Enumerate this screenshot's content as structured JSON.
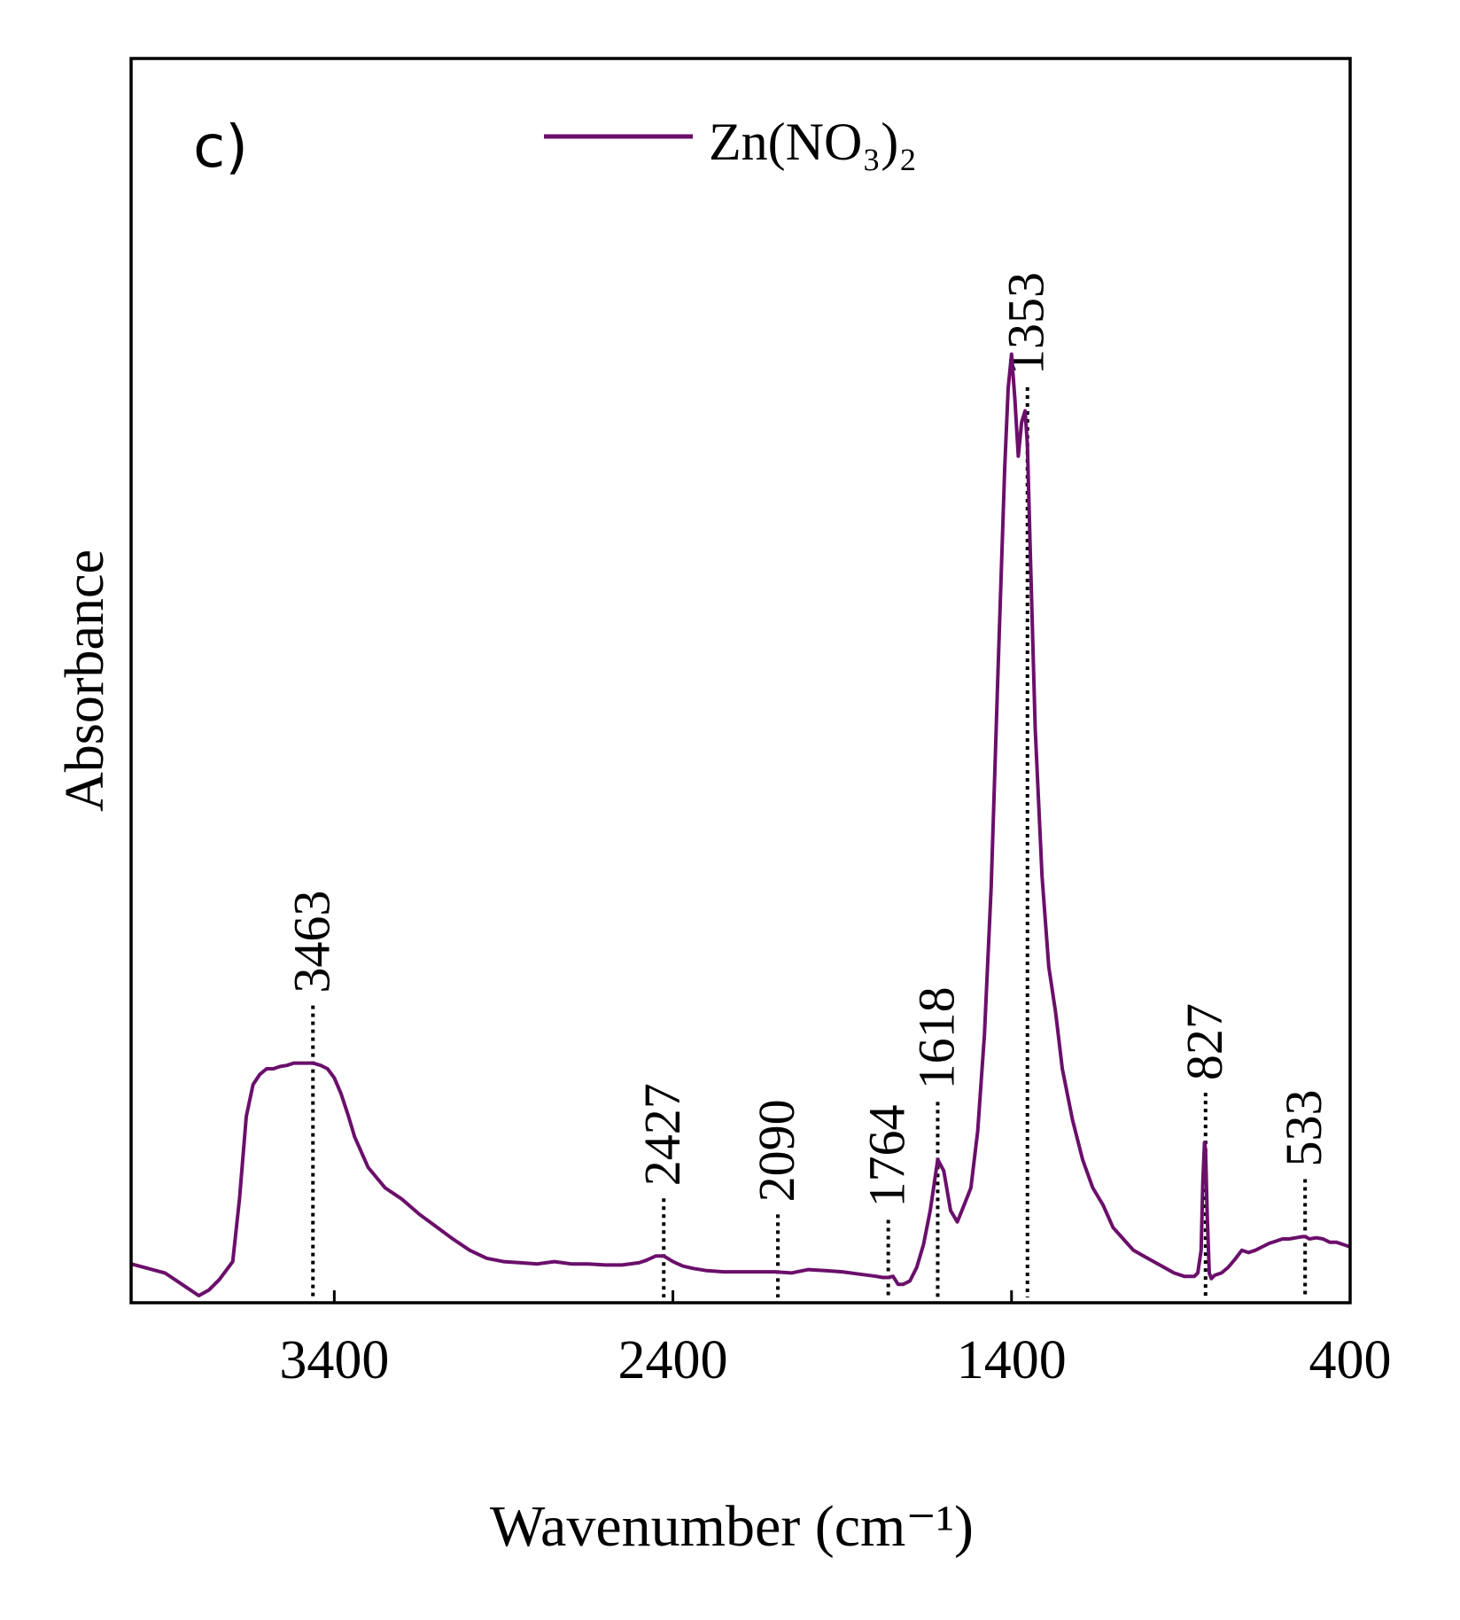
{
  "chart_data": {
    "type": "line",
    "panel_label": "c)",
    "xlabel": "Wavenumber (cm⁻¹)",
    "ylabel": "Absorbance",
    "xlim": [
      4000,
      400
    ],
    "ylim": [
      0,
      1
    ],
    "x_ticks": [
      3400,
      2400,
      1400,
      400
    ],
    "x_tick_labels": [
      "3400",
      "2400",
      "1400",
      "400"
    ],
    "legend": {
      "position": "top-center",
      "label": "Zn(NO₃)₂"
    },
    "series": [
      {
        "name": "Zn(NO₃)₂",
        "color": "#6b0f6b",
        "x": [
          4000,
          3900,
          3850,
          3800,
          3770,
          3740,
          3700,
          3680,
          3660,
          3640,
          3620,
          3600,
          3580,
          3560,
          3540,
          3520,
          3500,
          3480,
          3463,
          3440,
          3420,
          3400,
          3380,
          3360,
          3340,
          3300,
          3250,
          3200,
          3150,
          3100,
          3050,
          3000,
          2950,
          2900,
          2850,
          2800,
          2750,
          2700,
          2650,
          2600,
          2550,
          2500,
          2480,
          2450,
          2427,
          2400,
          2370,
          2340,
          2300,
          2250,
          2200,
          2150,
          2100,
          2050,
          2000,
          1950,
          1900,
          1850,
          1800,
          1780,
          1764,
          1750,
          1735,
          1720,
          1700,
          1680,
          1660,
          1640,
          1618,
          1600,
          1580,
          1560,
          1540,
          1520,
          1500,
          1480,
          1460,
          1440,
          1420,
          1410,
          1400,
          1390,
          1380,
          1370,
          1360,
          1353,
          1345,
          1330,
          1310,
          1290,
          1270,
          1250,
          1220,
          1190,
          1160,
          1130,
          1100,
          1070,
          1040,
          1010,
          980,
          950,
          920,
          890,
          860,
          850,
          840,
          835,
          830,
          827,
          822,
          816,
          810,
          800,
          780,
          760,
          740,
          720,
          700,
          680,
          660,
          640,
          620,
          600,
          580,
          560,
          540,
          533,
          520,
          500,
          480,
          460,
          440,
          420,
          400
        ],
        "y": [
          0.028,
          0.02,
          0.01,
          0.0,
          0.005,
          0.014,
          0.03,
          0.085,
          0.158,
          0.186,
          0.195,
          0.2,
          0.2,
          0.202,
          0.203,
          0.205,
          0.205,
          0.205,
          0.205,
          0.203,
          0.2,
          0.192,
          0.178,
          0.16,
          0.14,
          0.113,
          0.095,
          0.085,
          0.072,
          0.061,
          0.05,
          0.04,
          0.033,
          0.03,
          0.029,
          0.028,
          0.03,
          0.028,
          0.028,
          0.027,
          0.027,
          0.029,
          0.031,
          0.035,
          0.035,
          0.03,
          0.026,
          0.024,
          0.022,
          0.021,
          0.021,
          0.021,
          0.021,
          0.02,
          0.023,
          0.022,
          0.021,
          0.019,
          0.017,
          0.016,
          0.016,
          0.017,
          0.01,
          0.01,
          0.013,
          0.025,
          0.045,
          0.075,
          0.12,
          0.11,
          0.075,
          0.065,
          0.08,
          0.095,
          0.145,
          0.23,
          0.36,
          0.55,
          0.73,
          0.8,
          0.83,
          0.79,
          0.74,
          0.77,
          0.78,
          0.75,
          0.66,
          0.5,
          0.37,
          0.29,
          0.25,
          0.2,
          0.155,
          0.12,
          0.095,
          0.08,
          0.06,
          0.05,
          0.04,
          0.035,
          0.03,
          0.025,
          0.02,
          0.017,
          0.017,
          0.02,
          0.04,
          0.1,
          0.135,
          0.128,
          0.07,
          0.02,
          0.015,
          0.018,
          0.02,
          0.025,
          0.032,
          0.04,
          0.038,
          0.04,
          0.043,
          0.046,
          0.048,
          0.05,
          0.05,
          0.051,
          0.052,
          0.052,
          0.05,
          0.051,
          0.05,
          0.047,
          0.047,
          0.045,
          0.043
        ]
      }
    ],
    "annotations": [
      {
        "label": "3463",
        "x": 3463
      },
      {
        "label": "2427",
        "x": 2427
      },
      {
        "label": "2090",
        "x": 2090
      },
      {
        "label": "1764",
        "x": 1764
      },
      {
        "label": "1618",
        "x": 1618
      },
      {
        "label": "1353",
        "x": 1353
      },
      {
        "label": "827",
        "x": 827
      },
      {
        "label": "533",
        "x": 533
      }
    ]
  }
}
